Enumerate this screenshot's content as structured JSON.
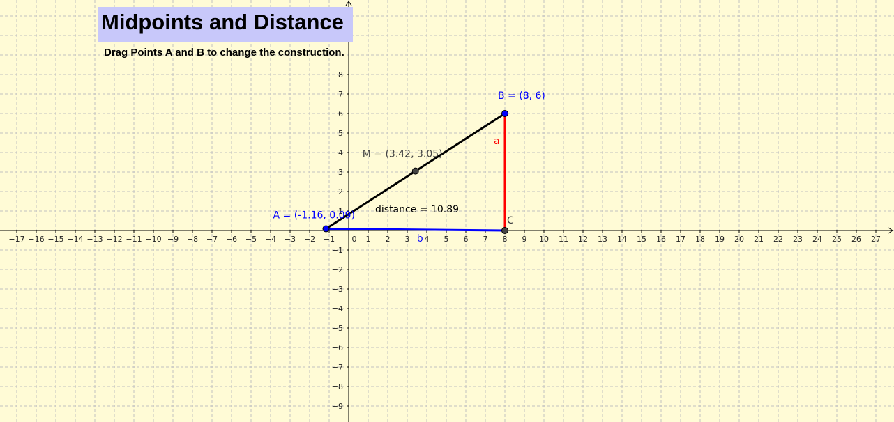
{
  "title": "Midpoints and Distance",
  "instruction": "Drag Points A and B to change the construction.",
  "colors": {
    "background": "#fffbd6",
    "title_box": "#c8c8fa",
    "draggable_point": "#0000ff",
    "fixed_point": "#444444",
    "segment_ab": "#000000",
    "segment_a": "#ff0000",
    "segment_b": "#0000ff"
  },
  "axes": {
    "xmin": -17,
    "xmax": 27,
    "ymin": -9,
    "ymax": 8
  },
  "points": {
    "A": {
      "label": "A = (-1.16, 0.09)",
      "x": -1.16,
      "y": 0.09
    },
    "B": {
      "label": "B = (8, 6)",
      "x": 8,
      "y": 6
    },
    "M": {
      "label": "M = (3.42, 3.05)",
      "x": 3.42,
      "y": 3.05
    },
    "C": {
      "label": "C",
      "x": 8,
      "y": 0
    }
  },
  "segments": {
    "a": "a",
    "b": "b"
  },
  "distance_label": "distance = 10.89"
}
